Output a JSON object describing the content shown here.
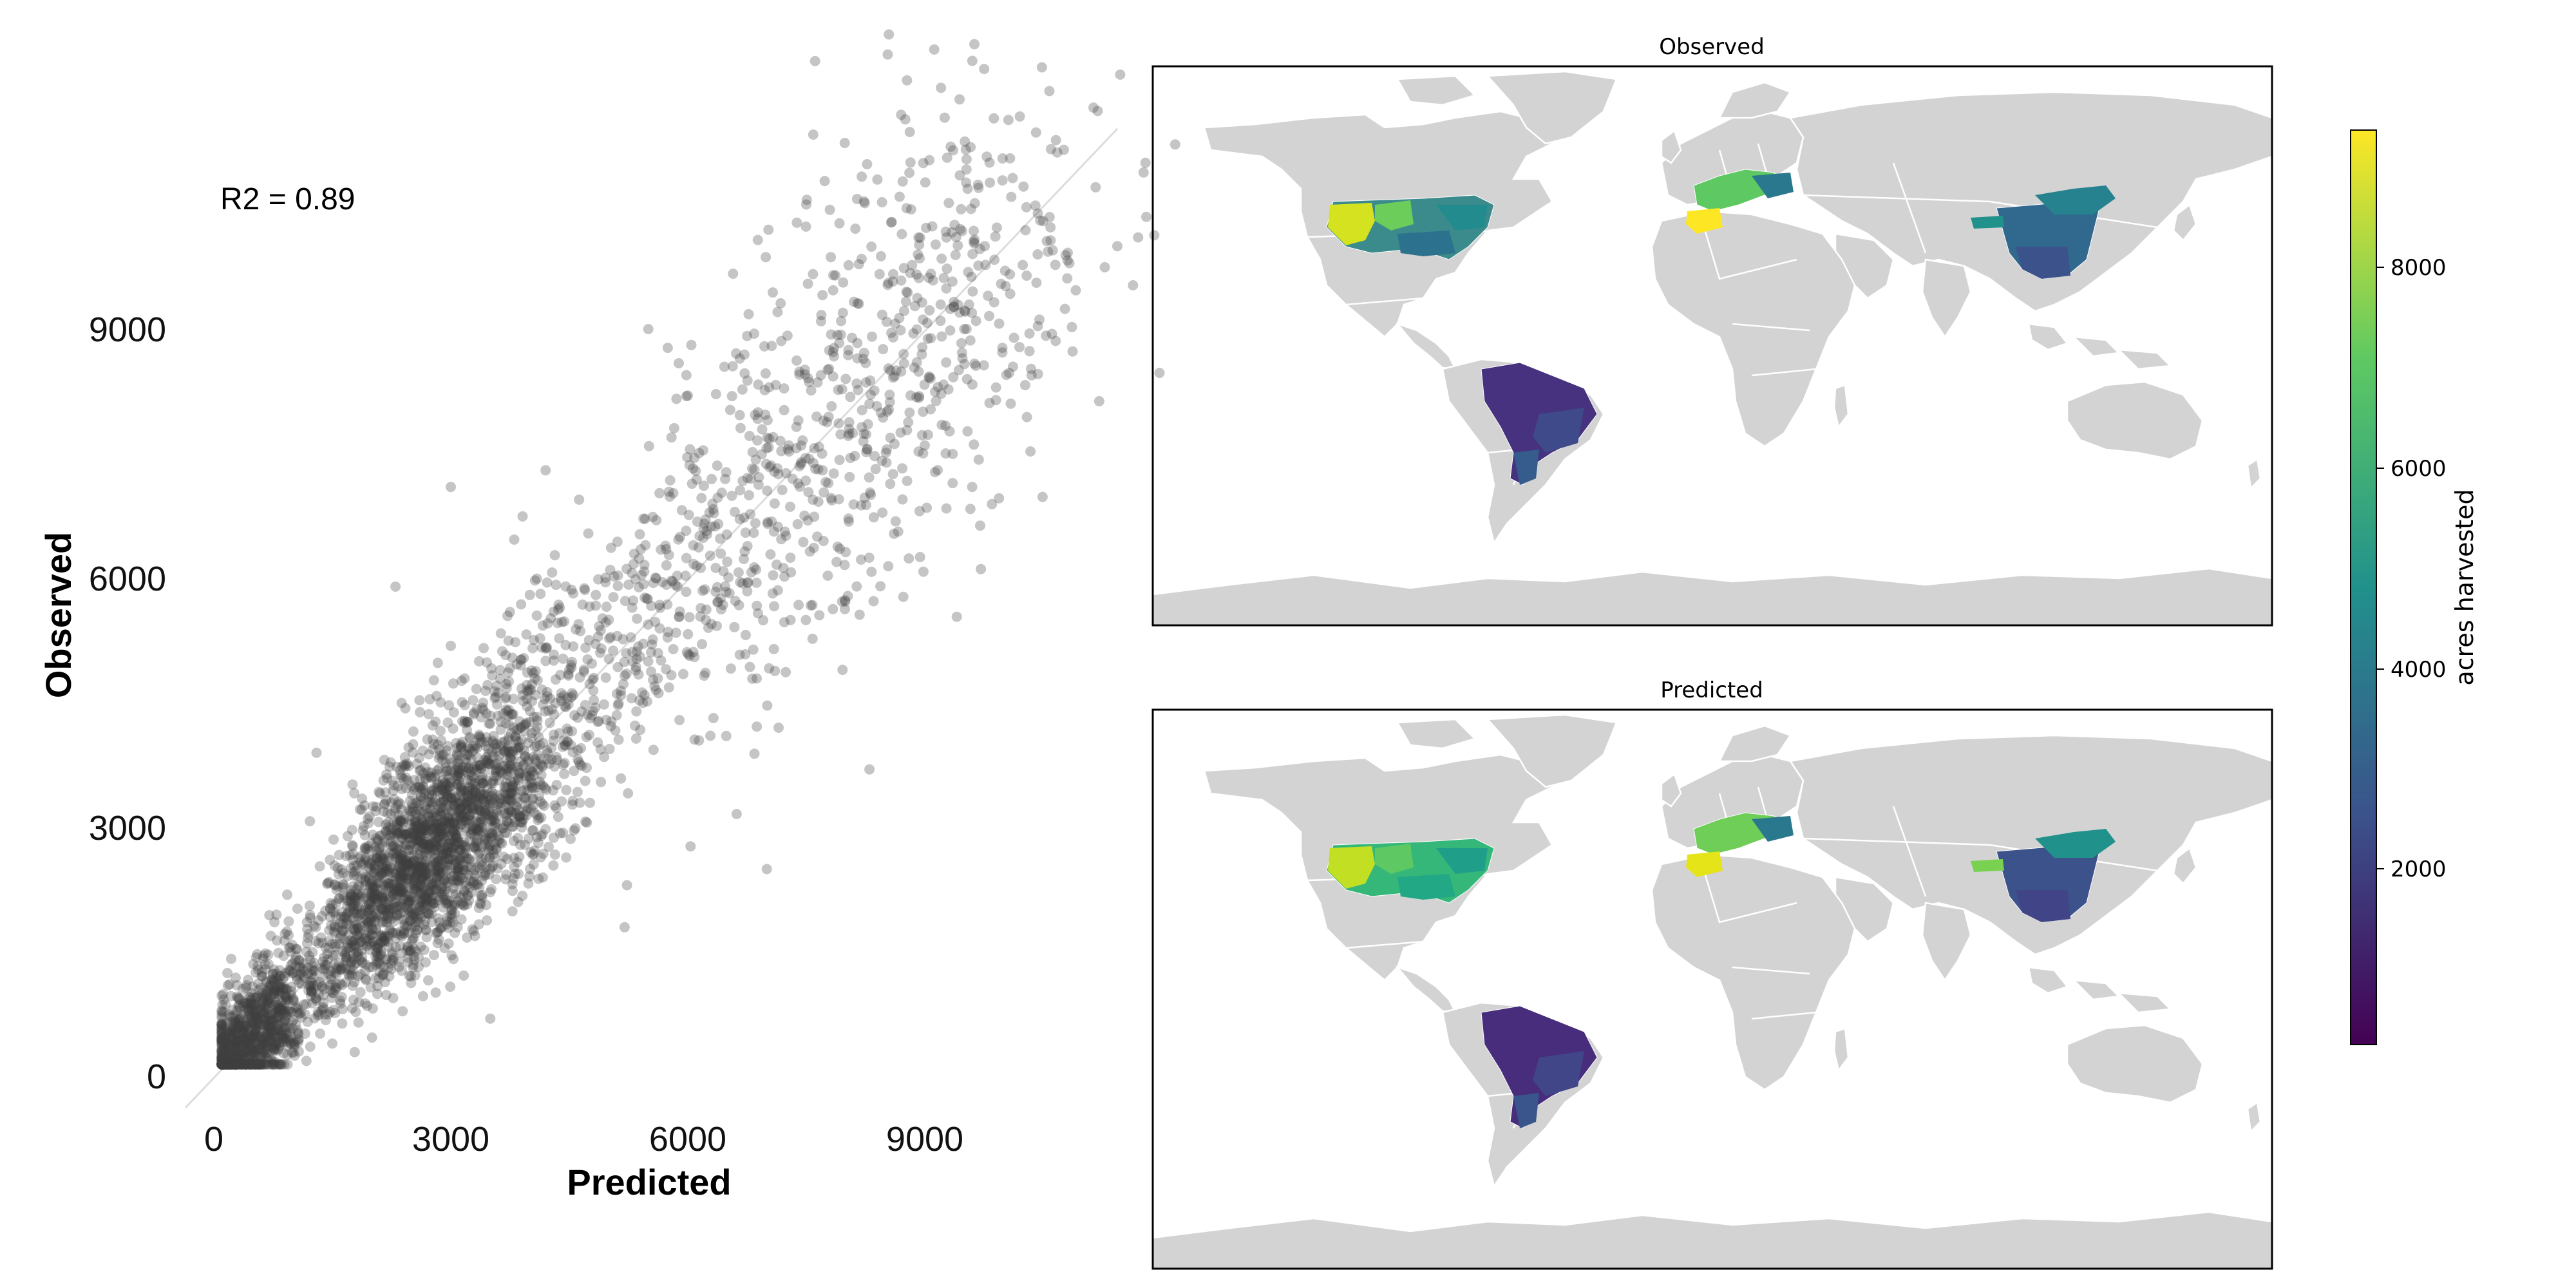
{
  "chart_data": [
    {
      "type": "scatter",
      "xlabel": "Predicted",
      "ylabel": "Observed",
      "xlim": [
        -500,
        11200
      ],
      "ylim": [
        -500,
        11400
      ],
      "xticks": [
        0,
        3000,
        6000,
        9000
      ],
      "yticks": [
        0,
        3000,
        6000,
        9000
      ],
      "tick_labels": [
        "0",
        "3000",
        "6000",
        "9000"
      ],
      "annotation": "R2 = 0.89",
      "reference_line": "y = x",
      "point_color": "#3f3f3f",
      "grid": false,
      "points": [
        [
          150,
          250
        ],
        [
          300,
          400
        ],
        [
          500,
          300
        ],
        [
          700,
          600
        ],
        [
          900,
          800
        ],
        [
          1200,
          1100
        ],
        [
          1500,
          1600
        ],
        [
          1800,
          1500
        ],
        [
          2000,
          2200
        ],
        [
          2200,
          1900
        ],
        [
          2400,
          2600
        ],
        [
          2600,
          2300
        ],
        [
          2800,
          3000
        ],
        [
          3000,
          2700
        ],
        [
          3200,
          3300
        ],
        [
          3400,
          3000
        ],
        [
          2500,
          3500
        ],
        [
          3500,
          2500
        ],
        [
          3800,
          4200
        ],
        [
          4000,
          3700
        ],
        [
          4500,
          4900
        ],
        [
          4800,
          4400
        ],
        [
          5000,
          5500
        ],
        [
          5300,
          5000
        ],
        [
          5600,
          6000
        ],
        [
          5900,
          5600
        ],
        [
          6200,
          6600
        ],
        [
          6500,
          6200
        ],
        [
          6800,
          7200
        ],
        [
          7100,
          6900
        ],
        [
          7400,
          7900
        ],
        [
          7700,
          7500
        ],
        [
          8000,
          8400
        ],
        [
          8300,
          8100
        ],
        [
          8600,
          8900
        ],
        [
          8900,
          8600
        ],
        [
          9200,
          9100
        ],
        [
          9500,
          9000
        ],
        [
          9800,
          9400
        ],
        [
          10500,
          10300
        ],
        [
          7500,
          10500
        ],
        [
          8400,
          10800
        ],
        [
          9000,
          7600
        ],
        [
          9600,
          7100
        ],
        [
          8300,
          3700
        ],
        [
          7000,
          2500
        ],
        [
          5200,
          1800
        ],
        [
          4000,
          5800
        ],
        [
          2300,
          5900
        ],
        [
          1300,
          3900
        ],
        [
          3000,
          7100
        ],
        [
          3500,
          700
        ],
        [
          1500,
          400
        ],
        [
          6000,
          8200
        ],
        [
          5500,
          9000
        ],
        [
          4200,
          7300
        ]
      ]
    },
    {
      "type": "heatmap",
      "panels": [
        {
          "title": "Observed"
        },
        {
          "title": "Predicted"
        }
      ],
      "colorbar": {
        "label": "acres harvested",
        "ticks": [
          "2000",
          "4000",
          "6000",
          "8000"
        ],
        "range": [
          0,
          9400
        ],
        "colormap": "viridis",
        "colors": [
          "#440154",
          "#3b528b",
          "#21918c",
          "#5ec962",
          "#fde725"
        ]
      },
      "land_color": "#d3d3d3",
      "border_color": "#ffffff",
      "regions": [
        "United States",
        "Western Europe",
        "China",
        "Brazil"
      ]
    }
  ]
}
